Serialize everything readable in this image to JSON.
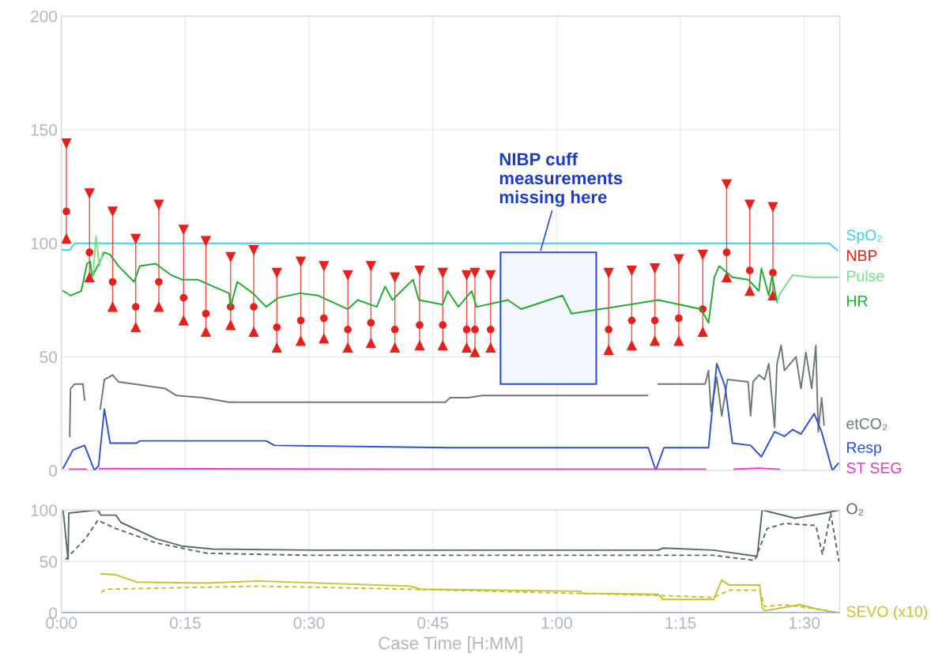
{
  "chart_data": [
    {
      "type": "line",
      "xlim": [
        0,
        94.3
      ],
      "xticks": [
        {
          "value": 0,
          "label": null
        },
        {
          "value": 15,
          "label": null
        },
        {
          "value": 30,
          "label": null
        },
        {
          "value": 45,
          "label": null
        },
        {
          "value": 60,
          "label": null
        },
        {
          "value": 75,
          "label": null
        },
        {
          "value": 90,
          "label": null
        }
      ],
      "ylim": [
        0,
        200
      ],
      "yticks": [
        0,
        50,
        100,
        150,
        200
      ],
      "tick_labels": "y",
      "grid": true,
      "marker": "none",
      "line_style": "solid",
      "annotations": [
        {
          "text": "NIBP cuff\nmeasurements\nmissing here",
          "x": 58,
          "y": 96
        }
      ],
      "bands": [
        {
          "axis": "x",
          "from": 53.2,
          "to": 64.8,
          "label": null,
          "color": "#2a4fd0"
        }
      ],
      "series": [
        {
          "name": "SpO₂",
          "color": "#3fd0e0",
          "x": [
            0,
            1,
            1.6,
            20,
            40,
            60,
            80,
            93,
            94
          ],
          "values": [
            97,
            97,
            100,
            100,
            100,
            100,
            100,
            100,
            97
          ]
        },
        {
          "name": "NBP",
          "color": "#e8201c",
          "type": "scatter",
          "marker": "circle",
          "x": [
            0.6,
            3.4,
            6.2,
            9.0,
            11.8,
            14.8,
            17.5,
            20.5,
            23.3,
            26.1,
            29.0,
            31.8,
            34.7,
            37.5,
            40.4,
            43.4,
            46.2,
            49.1,
            50.1,
            52.0,
            66.3,
            69.1,
            71.9,
            74.8,
            77.7,
            80.6,
            83.4,
            86.2
          ],
          "values": [
            114,
            96,
            83,
            72,
            83,
            76,
            69,
            72,
            72,
            63,
            66,
            67,
            62,
            65,
            62,
            64,
            64,
            62,
            62,
            62,
            62,
            66,
            66,
            67,
            71,
            96,
            88,
            87
          ],
          "errors": [
            [
              102,
              144
            ],
            [
              85,
              122
            ],
            [
              72,
              114
            ],
            [
              63,
              102
            ],
            [
              72,
              117
            ],
            [
              66,
              106
            ],
            [
              61,
              101
            ],
            [
              64,
              94
            ],
            [
              61,
              97
            ],
            [
              54,
              87
            ],
            [
              57,
              92
            ],
            [
              58,
              90
            ],
            [
              54,
              86
            ],
            [
              56,
              90
            ],
            [
              54,
              85
            ],
            [
              55,
              88
            ],
            [
              55,
              87
            ],
            [
              54,
              86
            ],
            [
              52,
              87
            ],
            [
              54,
              86
            ],
            [
              53,
              87
            ],
            [
              55,
              88
            ],
            [
              57,
              89
            ],
            [
              57,
              93
            ],
            [
              61,
              95
            ],
            [
              85,
              126
            ],
            [
              79,
              117
            ],
            [
              77,
              116
            ]
          ]
        },
        {
          "color": "#e8201c",
          "type": "scatter",
          "marker": "triangle-down",
          "x": [
            0.6,
            3.4,
            6.2,
            9.0,
            11.8,
            14.8,
            17.5,
            20.5,
            23.3,
            26.1,
            29.0,
            31.8,
            34.7,
            37.5,
            40.4,
            43.4,
            46.2,
            49.1,
            50.1,
            52.0,
            66.3,
            69.1,
            71.9,
            74.8,
            77.7,
            80.6,
            83.4,
            86.2
          ],
          "values": [
            144,
            122,
            114,
            102,
            117,
            106,
            101,
            94,
            97,
            87,
            92,
            90,
            86,
            90,
            85,
            88,
            87,
            86,
            87,
            86,
            87,
            88,
            89,
            93,
            95,
            126,
            117,
            116
          ]
        },
        {
          "color": "#e8201c",
          "type": "scatter",
          "marker": "triangle",
          "x": [
            0.6,
            3.4,
            6.2,
            9.0,
            11.8,
            14.8,
            17.5,
            20.5,
            23.3,
            26.1,
            29.0,
            31.8,
            34.7,
            37.5,
            40.4,
            43.4,
            46.2,
            49.1,
            50.1,
            52.0,
            66.3,
            69.1,
            71.9,
            74.8,
            77.7,
            80.6,
            83.4,
            86.2
          ],
          "values": [
            102,
            85,
            72,
            63,
            72,
            66,
            61,
            64,
            61,
            54,
            57,
            58,
            54,
            56,
            54,
            55,
            55,
            54,
            52,
            54,
            53,
            55,
            57,
            57,
            61,
            85,
            79,
            77
          ]
        },
        {
          "name": "HR",
          "color": "#22aa33",
          "x": [
            0.2,
            1.1,
            2.4,
            3.1,
            3.5,
            3.7,
            5.2,
            5.9,
            6.9,
            8.8,
            9.5,
            11.4,
            13.3,
            14.6,
            16.5,
            18.4,
            20.3,
            20.5,
            21.3,
            23.2,
            24.8,
            26.3,
            28.9,
            31.1,
            34.7,
            35.9,
            38.2,
            39.2,
            40.1,
            42.6,
            43.3,
            46.2,
            46.8,
            48.1,
            49.7,
            50.3,
            54.1,
            55.7,
            60.7,
            61.8,
            65.3,
            72.3,
            77.5,
            78.4,
            79.1,
            79.7,
            81.3,
            83.2,
            84.5,
            84.8,
            85.7,
            86.1,
            86.7
          ],
          "values": [
            79,
            77,
            79,
            91,
            92,
            85,
            96,
            95,
            90,
            83,
            90,
            91,
            86,
            84,
            84,
            81,
            78,
            72,
            83,
            78,
            72,
            76,
            78,
            77,
            71,
            75,
            72,
            81,
            75,
            84,
            75,
            73,
            79,
            72,
            79,
            72,
            75,
            71,
            77,
            69,
            71,
            75,
            71,
            65,
            85,
            90,
            85,
            84,
            79,
            89,
            77,
            86,
            74
          ]
        },
        {
          "name": "Pulse",
          "color": "#7ddc8a",
          "x": [
            3.8,
            4.2,
            4.6,
            5.0,
            60,
            86.7,
            87.1,
            88.6,
            90.9,
            94.1
          ],
          "values": [
            85,
            103,
            90,
            96,
            null,
            74,
            78,
            86,
            85,
            85
          ]
        },
        {
          "name": "etCO₂",
          "color": "#6b7a74",
          "x": [
            1.0,
            1.1,
            1.6,
            2.6,
            2.8,
            3.7,
            4.7,
            5.2,
            6.2,
            6.9,
            8.8,
            12.6,
            13.9,
            17.1,
            20.3,
            31.1,
            46.5,
            47.1,
            49.3,
            51,
            71,
            71.6,
            72.3,
            78,
            78.4,
            78.7,
            79.4,
            80,
            80.7,
            83.2,
            83.5,
            83.8,
            84.5,
            85.2,
            85.7,
            86.4,
            86.7,
            87.2,
            87.6,
            89,
            89.6,
            90.2,
            90.9,
            91.4,
            91.7,
            92.1,
            92.4
          ],
          "values": [
            15,
            36,
            38,
            38,
            31,
            null,
            27,
            40,
            42,
            39,
            38,
            36,
            33,
            32,
            30,
            30,
            30,
            32,
            32,
            33,
            33,
            null,
            38,
            38,
            44,
            26,
            41,
            24,
            40,
            39,
            24,
            39,
            42,
            40,
            47,
            19,
            47,
            55,
            44,
            50,
            36,
            52,
            36,
            55,
            17,
            32,
            20
          ]
        },
        {
          "name": "Resp",
          "color": "#3050d0",
          "x": [
            0.2,
            1.4,
            2.8,
            4.0,
            4.5,
            5.2,
            5.9,
            9.1,
            9.5,
            24.8,
            25.8,
            47.1,
            71.1,
            72,
            73,
            78.4,
            79.4,
            80.4,
            81.3,
            83.5,
            84.8,
            86.4,
            87.6,
            88.6,
            89.6,
            91.2,
            92.1,
            93.4,
            94.1
          ],
          "values": [
            1,
            9,
            11,
            0,
            2,
            27,
            12,
            12,
            13,
            13,
            11,
            10,
            10,
            0,
            10,
            10,
            47,
            37,
            12,
            11,
            6,
            17,
            15,
            18,
            16,
            25,
            17,
            0,
            3
          ]
        },
        {
          "name": "ST SEG",
          "color": "#e040c0",
          "x": [
            1,
            3,
            3.5,
            4.6,
            40,
            78,
            79,
            81.5,
            84.5,
            87
          ],
          "values": [
            0.5,
            0.5,
            null,
            0.8,
            0.5,
            0.5,
            null,
            0.5,
            1,
            0.5
          ]
        }
      ]
    },
    {
      "type": "line",
      "xlim": [
        0,
        94.3
      ],
      "xticks": [
        {
          "value": 0,
          "label": "0:00"
        },
        {
          "value": 15,
          "label": "0:15"
        },
        {
          "value": 30,
          "label": "0:30"
        },
        {
          "value": 45,
          "label": "0:45"
        },
        {
          "value": 60,
          "label": "1:00"
        },
        {
          "value": 75,
          "label": "1:15"
        },
        {
          "value": 90,
          "label": "1:30"
        }
      ],
      "ylim": [
        0,
        100
      ],
      "yticks": [
        0,
        50,
        100
      ],
      "xlabel": "Case Time [H:MM]",
      "grid": true,
      "marker": "none",
      "line_style": "solid",
      "series": [
        {
          "name": "O₂",
          "color": "#5a6a66",
          "x": [
            0.2,
            0.8,
            0.9,
            4.4,
            4.8,
            6.6,
            7.2,
            11.5,
            14.6,
            18.3,
            30.7,
            72.3,
            72.9,
            79,
            84.3,
            84.9,
            86.4,
            88.9,
            92.5,
            94.2
          ],
          "values": [
            100,
            52,
            97,
            100,
            95,
            95,
            88,
            72,
            65,
            62,
            61,
            61,
            63,
            61,
            55,
            100,
            97,
            92,
            97,
            100
          ]
        },
        {
          "color": "#5a6a66",
          "line_style": "dashed",
          "x": [
            0.5,
            2.9,
            4.4,
            6.6,
            11.5,
            17.6,
            29.9,
            79,
            84,
            85.5,
            87.6,
            91.4,
            92.2,
            93.2,
            94.2
          ],
          "values": [
            52,
            72,
            90,
            82,
            68,
            58,
            56,
            56,
            51,
            82,
            87,
            85,
            57,
            97,
            50
          ]
        },
        {
          "name": "SEVO (x10)",
          "color": "#c8c030",
          "x": [
            4.8,
            6.6,
            9.1,
            17.6,
            23.8,
            42.2,
            43.5,
            62.9,
            63.1,
            72.3,
            72.9,
            79,
            80,
            80.9,
            84.6,
            84.9,
            85.2,
            89.5,
            91.4,
            94.1
          ],
          "values": [
            38,
            37,
            30,
            29,
            31,
            26,
            23,
            21,
            19,
            18,
            13,
            13,
            32,
            27,
            27,
            5,
            2,
            8,
            4,
            0
          ]
        },
        {
          "color": "#c8c030",
          "line_style": "dashed",
          "x": [
            4.8,
            5.4,
            23.8,
            42.2,
            72.3,
            79,
            80.9,
            84.6,
            85.2,
            87.6,
            91.4,
            94.1
          ],
          "values": [
            20,
            23,
            26,
            23,
            17,
            15,
            22,
            22,
            6,
            8,
            4,
            0
          ]
        },
        {
          "color": "#5b7fc0",
          "x": [
            0,
            94.3
          ],
          "values": [
            0,
            0
          ]
        }
      ]
    }
  ]
}
